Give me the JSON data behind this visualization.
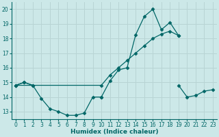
{
  "xlabel": "Humidex (Indice chaleur)",
  "background_color": "#cce8e8",
  "grid_color": "#b8d4d4",
  "line_color": "#006666",
  "xlim": [
    -0.5,
    23.5
  ],
  "ylim": [
    12.5,
    20.5
  ],
  "yticks": [
    13,
    14,
    15,
    16,
    17,
    18,
    19,
    20
  ],
  "xticks": [
    0,
    1,
    2,
    3,
    4,
    5,
    6,
    7,
    8,
    9,
    10,
    11,
    12,
    13,
    14,
    15,
    16,
    17,
    18,
    19,
    20,
    21,
    22,
    23
  ],
  "series1_x": [
    0,
    1,
    2,
    3,
    4,
    5,
    6,
    7,
    8,
    9,
    10,
    11,
    12,
    13,
    14,
    15,
    16,
    17,
    18,
    19
  ],
  "series1_y": [
    14.8,
    15.0,
    14.8,
    13.9,
    13.2,
    13.0,
    12.75,
    12.75,
    12.9,
    14.0,
    14.0,
    15.1,
    15.85,
    16.0,
    18.25,
    19.5,
    20.0,
    18.6,
    19.1,
    18.2
  ],
  "series2_x": [
    0,
    1,
    2,
    10,
    19,
    20,
    21,
    22,
    23
  ],
  "series2_y": [
    14.8,
    15.0,
    14.8,
    14.0,
    14.8,
    14.0,
    14.1,
    14.4,
    14.5
  ],
  "series3_x": [
    0,
    10,
    11,
    12,
    13,
    14,
    15,
    16,
    17,
    18,
    19
  ],
  "series3_y": [
    14.8,
    14.8,
    15.5,
    16.0,
    16.5,
    17.0,
    17.5,
    18.0,
    18.3,
    18.5,
    18.2
  ]
}
